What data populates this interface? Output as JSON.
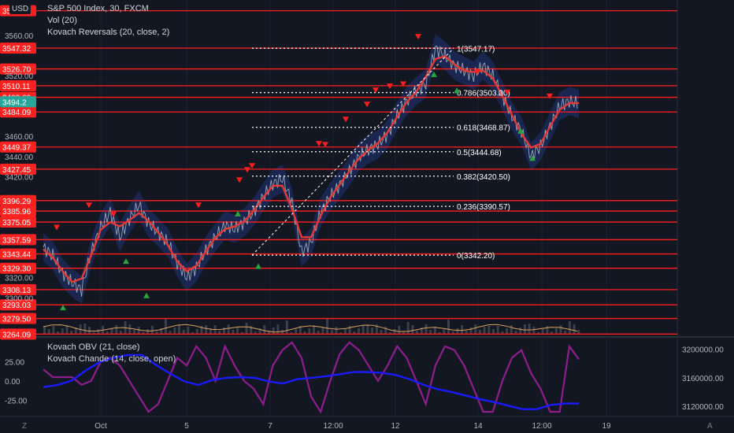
{
  "header": {
    "currency": "USD",
    "symbol_line": "S&P 500 Index, 30, FXCM",
    "indicators": [
      "Vol (20)",
      "Kovach Reversals (20, close, 2)"
    ],
    "lower_indicators": [
      "Kovach OBV (21, close)",
      "Kovach Chande (14, close, open)"
    ]
  },
  "colors": {
    "background": "#131722",
    "level_line": "#ff1e1e",
    "level_label_bg": "#ff2020",
    "price_line": "#b0bec5",
    "trend_line": "#e53935",
    "band_fill": "#1e3a8a",
    "sell_marker": "#ff1e1e",
    "buy_marker": "#26a641",
    "obv_line": "#1a1aff",
    "chande_line": "#8e1e8e",
    "volume_ma": "#d4a35a"
  },
  "chart_data": [
    {
      "type": "line",
      "title": "S&P 500 Index, 30, FXCM",
      "ylim": [
        3262,
        3595
      ],
      "y_ticks": [
        "3560.00",
        "3520.00",
        "3460.00",
        "3440.00",
        "3420.00",
        "3320.00",
        "3300.00"
      ],
      "x_ticks": [
        "Oct",
        "5",
        "7",
        "12:00",
        "12",
        "14",
        "12:00",
        "19"
      ],
      "series": [
        {
          "values": [
            3350,
            3342,
            3325,
            3315,
            3308,
            3345,
            3370,
            3385,
            3360,
            3378,
            3392,
            3374,
            3365,
            3355,
            3335,
            3320,
            3330,
            3347,
            3360,
            3372,
            3368,
            3375,
            3385,
            3400,
            3413,
            3418,
            3395,
            3345,
            3355,
            3385,
            3400,
            3412,
            3425,
            3440,
            3447,
            3452,
            3462,
            3480,
            3495,
            3505,
            3512,
            3547,
            3540,
            3530,
            3525,
            3520,
            3530,
            3520,
            3500,
            3480,
            3465,
            3440,
            3450,
            3470,
            3490,
            3495,
            3492
          ]
        }
      ],
      "levels": [
        "3584.4",
        "3547.32",
        "3526.70",
        "3510.11",
        "3498.63",
        "3484.09",
        "3449.37",
        "3427.45",
        "3396.29",
        "3385.96",
        "3375.05",
        "3357.59",
        "3343.44",
        "3329.30",
        "3308.13",
        "3293.03",
        "3279.50",
        "3264.09"
      ],
      "fibonacci": [
        {
          "label": "1(3547.17)",
          "value": 3547.17
        },
        {
          "label": "0.786(3503.30)",
          "value": 3503.3
        },
        {
          "label": "0.618(3468.87)",
          "value": 3468.87
        },
        {
          "label": "0.5(3444.68)",
          "value": 3444.68
        },
        {
          "label": "0.382(3420.50)",
          "value": 3420.5
        },
        {
          "label": "0.236(3390.57)",
          "value": 3390.57
        },
        {
          "label": "0(3342.20)",
          "value": 3342.2
        }
      ],
      "current_price_label": "3494.2"
    },
    {
      "type": "line",
      "title": "Kovach OBV (21, close)",
      "ylim": [
        -45,
        55
      ],
      "y_ticks": [
        "25.00",
        "0.00",
        "-25.00"
      ],
      "series": [
        {
          "name": "Kovach Chande (14, close, open)",
          "values": [
            15,
            5,
            5,
            5,
            -5,
            0,
            25,
            30,
            20,
            0,
            -20,
            -40,
            -30,
            0,
            30,
            20,
            45,
            30,
            0,
            45,
            20,
            0,
            -10,
            -30,
            20,
            40,
            50,
            30,
            -20,
            -40,
            0,
            35,
            50,
            40,
            20,
            0,
            20,
            45,
            30,
            0,
            -30,
            20,
            45,
            40,
            20,
            -10,
            -40,
            -40,
            0,
            30,
            40,
            10,
            -10,
            -40,
            -40,
            45,
            28
          ]
        }
      ],
      "right_axis_ticks": [
        "3200000.00",
        "3160000.00",
        "3120000.00"
      ],
      "right_ylim": [
        3107000,
        3215000
      ],
      "right_series": [
        {
          "name": "Kovach OBV (21, close)",
          "values": [
            3147000,
            3150000,
            3156000,
            3170000,
            3182000,
            3188000,
            3192000,
            3192000,
            3178000,
            3166000,
            3155000,
            3150000,
            3157000,
            3160000,
            3161000,
            3160000,
            3155000,
            3152000,
            3158000,
            3160000,
            3162000,
            3165000,
            3168000,
            3168000,
            3167000,
            3164000,
            3158000,
            3150000,
            3144000,
            3140000,
            3135000,
            3130000,
            3126000,
            3121000,
            3116000,
            3116000,
            3122000,
            3124000,
            3124000
          ]
        }
      ]
    }
  ],
  "bottom_bar": {
    "left_icon": "Z",
    "right_icon": "A"
  }
}
